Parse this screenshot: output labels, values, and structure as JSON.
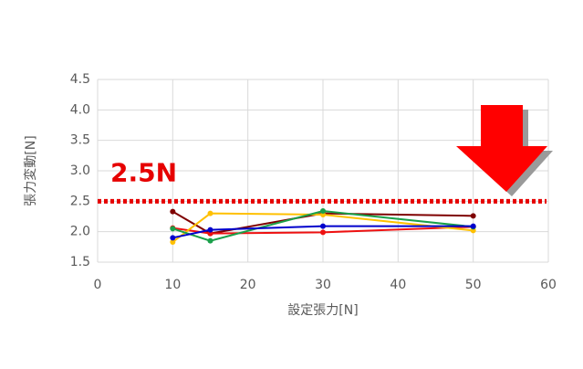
{
  "chart_data": {
    "type": "line",
    "x_label": "設定張力[N]",
    "y_label": "張力変動[N]",
    "x": [
      10,
      15,
      30,
      50
    ],
    "series": [
      {
        "color": "#7f0000",
        "values": [
          2.33,
          1.97,
          2.3,
          2.26
        ]
      },
      {
        "color": "#ee1111",
        "values": [
          2.06,
          1.97,
          1.99,
          2.08
        ]
      },
      {
        "color": "#ffc000",
        "values": [
          1.83,
          2.3,
          2.28,
          2.02
        ]
      },
      {
        "color": "#1aa04a",
        "values": [
          2.05,
          1.85,
          2.34,
          2.08
        ]
      },
      {
        "color": "#0000cc",
        "values": [
          1.9,
          2.03,
          2.09,
          2.09
        ]
      }
    ],
    "xlim": [
      0,
      60
    ],
    "xticks": [
      0,
      10,
      20,
      30,
      40,
      50,
      60
    ],
    "ylim": [
      1.5,
      4.5
    ],
    "yticks": [
      1.5,
      {
        "value": 2,
        "label": "2.0"
      },
      2.5,
      {
        "value": 3,
        "label": "3.0"
      },
      3.5,
      {
        "value": 4,
        "label": "4.0"
      },
      4.5
    ],
    "grid": true,
    "annotations": [
      {
        "label": "2.5N",
        "y": 2.5,
        "color": "#e60000"
      }
    ]
  }
}
